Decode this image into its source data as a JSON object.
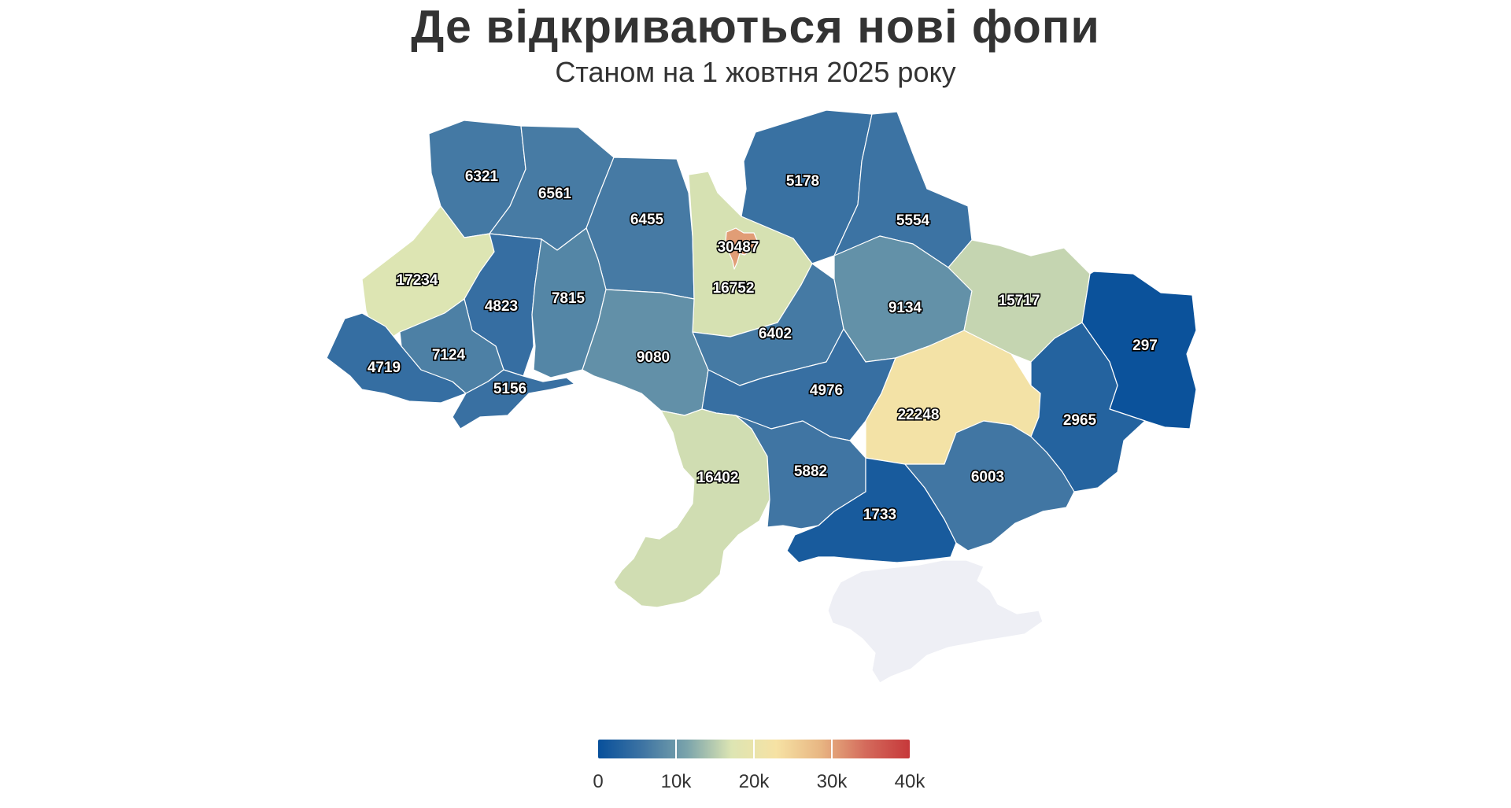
{
  "title": "Де відкриваються нові фопи",
  "subtitle": "Станом на 1 жовтня 2025 року",
  "map_data": {
    "type": "choropleth",
    "regions": [
      {
        "name": "Волинська",
        "value": 6321
      },
      {
        "name": "Рівненська",
        "value": 6561
      },
      {
        "name": "Житомирська",
        "value": 6455
      },
      {
        "name": "Київська",
        "value": 16752
      },
      {
        "name": "Київ",
        "value": 30487
      },
      {
        "name": "Чернігівська",
        "value": 5178
      },
      {
        "name": "Сумська",
        "value": 5554
      },
      {
        "name": "Львівська",
        "value": 17234
      },
      {
        "name": "Тернопільська",
        "value": 4823
      },
      {
        "name": "Хмельницька",
        "value": 7815
      },
      {
        "name": "Вінницька",
        "value": 9080
      },
      {
        "name": "Черкаська",
        "value": 6402
      },
      {
        "name": "Полтавська",
        "value": 9134
      },
      {
        "name": "Харківська",
        "value": 15717
      },
      {
        "name": "Луганська",
        "value": 297
      },
      {
        "name": "Закарпатська",
        "value": 4719
      },
      {
        "name": "Івано-Франківська",
        "value": 7124
      },
      {
        "name": "Чернівецька",
        "value": 5156
      },
      {
        "name": "Кіровоградська",
        "value": 4976
      },
      {
        "name": "Дніпропетровська",
        "value": 22248
      },
      {
        "name": "Донецька",
        "value": 2965
      },
      {
        "name": "Одеська",
        "value": 16402
      },
      {
        "name": "Миколаївська",
        "value": 5882
      },
      {
        "name": "Херсонська",
        "value": 1733
      },
      {
        "name": "Запорізька",
        "value": 6003
      },
      {
        "name": "Крим",
        "value": null
      }
    ],
    "no_data_color": "#eeeff5",
    "color_scale": [
      "#08509b",
      "#3e74a3",
      "#7ba4ab",
      "#dde5b3",
      "#f6e2a4",
      "#e8b683",
      "#d46b5c",
      "#c6383a"
    ],
    "scale_domain": [
      0,
      40000
    ],
    "legend": {
      "ticks": [
        0,
        10000,
        20000,
        30000,
        40000
      ],
      "tick_labels": [
        "0",
        "10k",
        "20k",
        "30k",
        "40k"
      ]
    }
  }
}
